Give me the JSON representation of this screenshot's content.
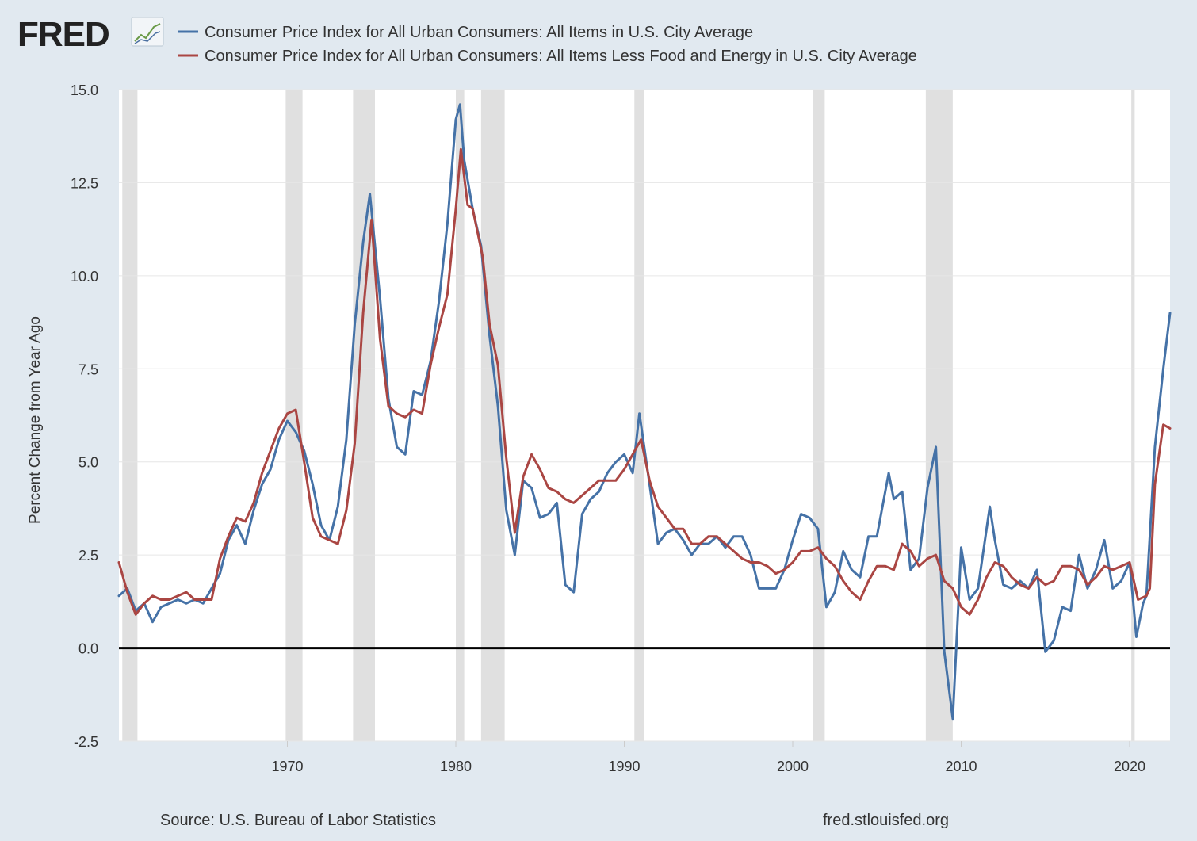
{
  "brand": {
    "logo_text": "FRED"
  },
  "source": "Source: U.S. Bureau of Labor Statistics",
  "site": "fred.stlouisfed.org",
  "colors": {
    "background": "#e1e9f0",
    "plot_bg": "#ffffff",
    "grid": "#e6e6e6",
    "recession": "#e0e0e0",
    "series_blue": "#4572a7",
    "series_red": "#aa4643",
    "zero_line": "#000000",
    "text": "#333333",
    "logo": "#222222"
  },
  "chart_data": {
    "type": "line",
    "ylabel": "Percent Change from Year Ago",
    "xlabel": "",
    "xlim": [
      1960.0,
      2022.4
    ],
    "ylim": [
      -2.5,
      15.0
    ],
    "yticks": [
      -2.5,
      0.0,
      2.5,
      5.0,
      7.5,
      10.0,
      12.5,
      15.0
    ],
    "ytick_labels": [
      "-2.5",
      "0.0",
      "2.5",
      "5.0",
      "7.5",
      "10.0",
      "12.5",
      "15.0"
    ],
    "xticks": [
      1970,
      1980,
      1990,
      2000,
      2010,
      2020
    ],
    "xtick_labels": [
      "1970",
      "1980",
      "1990",
      "2000",
      "2010",
      "2020"
    ],
    "recessions": [
      [
        1960.2,
        1961.1
      ],
      [
        1969.9,
        1970.9
      ],
      [
        1973.9,
        1975.2
      ],
      [
        1980.0,
        1980.5
      ],
      [
        1981.5,
        1982.9
      ],
      [
        1990.6,
        1991.2
      ],
      [
        2001.2,
        2001.9
      ],
      [
        2007.9,
        2009.5
      ],
      [
        2020.1,
        2020.3
      ]
    ],
    "series": [
      {
        "name": "Consumer Price Index for All Urban Consumers: All Items in U.S. City Average",
        "color": "#4572a7",
        "x": [
          1960.0,
          1960.5,
          1961.0,
          1961.5,
          1962.0,
          1962.5,
          1963.0,
          1963.5,
          1964.0,
          1964.5,
          1965.0,
          1965.5,
          1966.0,
          1966.5,
          1967.0,
          1967.5,
          1968.0,
          1968.5,
          1969.0,
          1969.5,
          1970.0,
          1970.5,
          1971.0,
          1971.5,
          1972.0,
          1972.5,
          1973.0,
          1973.5,
          1974.0,
          1974.5,
          1974.9,
          1975.5,
          1976.0,
          1976.5,
          1977.0,
          1977.5,
          1978.0,
          1978.5,
          1979.0,
          1979.5,
          1980.0,
          1980.25,
          1980.5,
          1981.0,
          1981.5,
          1982.0,
          1982.5,
          1983.0,
          1983.5,
          1984.0,
          1984.5,
          1985.0,
          1985.5,
          1986.0,
          1986.5,
          1987.0,
          1987.5,
          1988.0,
          1988.5,
          1989.0,
          1989.5,
          1990.0,
          1990.5,
          1990.9,
          1991.5,
          1992.0,
          1992.5,
          1993.0,
          1993.5,
          1994.0,
          1994.5,
          1995.0,
          1995.5,
          1996.0,
          1996.5,
          1997.0,
          1997.5,
          1998.0,
          1998.5,
          1999.0,
          1999.5,
          2000.0,
          2000.5,
          2001.0,
          2001.5,
          2002.0,
          2002.5,
          2003.0,
          2003.5,
          2004.0,
          2004.5,
          2005.0,
          2005.7,
          2006.0,
          2006.5,
          2007.0,
          2007.5,
          2008.0,
          2008.5,
          2009.0,
          2009.5,
          2010.0,
          2010.5,
          2011.0,
          2011.7,
          2012.0,
          2012.5,
          2013.0,
          2013.5,
          2014.0,
          2014.5,
          2015.0,
          2015.5,
          2016.0,
          2016.5,
          2017.0,
          2017.5,
          2018.0,
          2018.5,
          2019.0,
          2019.5,
          2020.0,
          2020.4,
          2020.8,
          2021.0,
          2021.5,
          2022.0,
          2022.4
        ],
        "values": [
          1.4,
          1.6,
          1.0,
          1.2,
          0.7,
          1.1,
          1.2,
          1.3,
          1.2,
          1.3,
          1.2,
          1.6,
          2.0,
          2.9,
          3.3,
          2.8,
          3.7,
          4.4,
          4.8,
          5.6,
          6.1,
          5.8,
          5.3,
          4.4,
          3.3,
          2.9,
          3.8,
          5.6,
          8.7,
          10.9,
          12.2,
          9.4,
          6.7,
          5.4,
          5.2,
          6.9,
          6.8,
          7.7,
          9.3,
          11.4,
          14.2,
          14.6,
          13.1,
          11.8,
          10.8,
          8.4,
          6.5,
          3.7,
          2.5,
          4.5,
          4.3,
          3.5,
          3.6,
          3.9,
          1.7,
          1.5,
          3.6,
          4.0,
          4.2,
          4.7,
          5.0,
          5.2,
          4.7,
          6.3,
          4.4,
          2.8,
          3.1,
          3.2,
          2.9,
          2.5,
          2.8,
          2.8,
          3.0,
          2.7,
          3.0,
          3.0,
          2.5,
          1.6,
          1.6,
          1.6,
          2.1,
          2.9,
          3.6,
          3.5,
          3.2,
          1.1,
          1.5,
          2.6,
          2.1,
          1.9,
          3.0,
          3.0,
          4.7,
          4.0,
          4.2,
          2.1,
          2.4,
          4.3,
          5.4,
          -0.1,
          -1.9,
          2.7,
          1.3,
          1.6,
          3.8,
          2.9,
          1.7,
          1.6,
          1.8,
          1.6,
          2.1,
          -0.1,
          0.2,
          1.1,
          1.0,
          2.5,
          1.6,
          2.1,
          2.9,
          1.6,
          1.8,
          2.3,
          0.3,
          1.2,
          1.4,
          5.4,
          7.5,
          9.0
        ]
      },
      {
        "name": "Consumer Price Index for All Urban Consumers: All Items Less Food and Energy in U.S. City Average",
        "color": "#aa4643",
        "x": [
          1960.0,
          1960.5,
          1961.0,
          1961.5,
          1962.0,
          1962.5,
          1963.0,
          1963.5,
          1964.0,
          1964.5,
          1965.0,
          1965.5,
          1966.0,
          1966.5,
          1967.0,
          1967.5,
          1968.0,
          1968.5,
          1969.0,
          1969.5,
          1970.0,
          1970.5,
          1971.0,
          1971.5,
          1972.0,
          1972.5,
          1973.0,
          1973.5,
          1974.0,
          1974.5,
          1975.0,
          1975.5,
          1976.0,
          1976.5,
          1977.0,
          1977.5,
          1978.0,
          1978.5,
          1979.0,
          1979.5,
          1980.0,
          1980.3,
          1980.7,
          1981.0,
          1981.6,
          1982.0,
          1982.5,
          1983.0,
          1983.5,
          1984.0,
          1984.5,
          1985.0,
          1985.5,
          1986.0,
          1986.5,
          1987.0,
          1987.5,
          1988.0,
          1988.5,
          1989.0,
          1989.5,
          1990.0,
          1990.5,
          1991.0,
          1991.5,
          1992.0,
          1992.5,
          1993.0,
          1993.5,
          1994.0,
          1994.5,
          1995.0,
          1995.5,
          1996.0,
          1996.5,
          1997.0,
          1997.5,
          1998.0,
          1998.5,
          1999.0,
          1999.5,
          2000.0,
          2000.5,
          2001.0,
          2001.5,
          2002.0,
          2002.5,
          2003.0,
          2003.5,
          2004.0,
          2004.5,
          2005.0,
          2005.5,
          2006.0,
          2006.5,
          2007.0,
          2007.5,
          2008.0,
          2008.5,
          2009.0,
          2009.5,
          2010.0,
          2010.5,
          2011.0,
          2011.5,
          2012.0,
          2012.5,
          2013.0,
          2013.5,
          2014.0,
          2014.5,
          2015.0,
          2015.5,
          2016.0,
          2016.5,
          2017.0,
          2017.5,
          2018.0,
          2018.5,
          2019.0,
          2019.5,
          2020.0,
          2020.5,
          2021.0,
          2021.2,
          2021.5,
          2022.0,
          2022.4
        ],
        "values": [
          2.3,
          1.5,
          0.9,
          1.2,
          1.4,
          1.3,
          1.3,
          1.4,
          1.5,
          1.3,
          1.3,
          1.3,
          2.4,
          3.0,
          3.5,
          3.4,
          3.9,
          4.7,
          5.3,
          5.9,
          6.3,
          6.4,
          5.0,
          3.5,
          3.0,
          2.9,
          2.8,
          3.7,
          5.5,
          9.0,
          11.5,
          8.3,
          6.5,
          6.3,
          6.2,
          6.4,
          6.3,
          7.6,
          8.6,
          9.5,
          11.8,
          13.4,
          11.9,
          11.8,
          10.5,
          8.7,
          7.6,
          5.1,
          3.1,
          4.6,
          5.2,
          4.8,
          4.3,
          4.2,
          4.0,
          3.9,
          4.1,
          4.3,
          4.5,
          4.5,
          4.5,
          4.8,
          5.2,
          5.6,
          4.5,
          3.8,
          3.5,
          3.2,
          3.2,
          2.8,
          2.8,
          3.0,
          3.0,
          2.8,
          2.6,
          2.4,
          2.3,
          2.3,
          2.2,
          2.0,
          2.1,
          2.3,
          2.6,
          2.6,
          2.7,
          2.4,
          2.2,
          1.8,
          1.5,
          1.3,
          1.8,
          2.2,
          2.2,
          2.1,
          2.8,
          2.6,
          2.2,
          2.4,
          2.5,
          1.8,
          1.6,
          1.1,
          0.9,
          1.3,
          1.9,
          2.3,
          2.2,
          1.9,
          1.7,
          1.6,
          1.9,
          1.7,
          1.8,
          2.2,
          2.2,
          2.1,
          1.7,
          1.9,
          2.2,
          2.1,
          2.2,
          2.3,
          1.3,
          1.4,
          1.6,
          4.4,
          6.0,
          5.9
        ]
      }
    ]
  }
}
